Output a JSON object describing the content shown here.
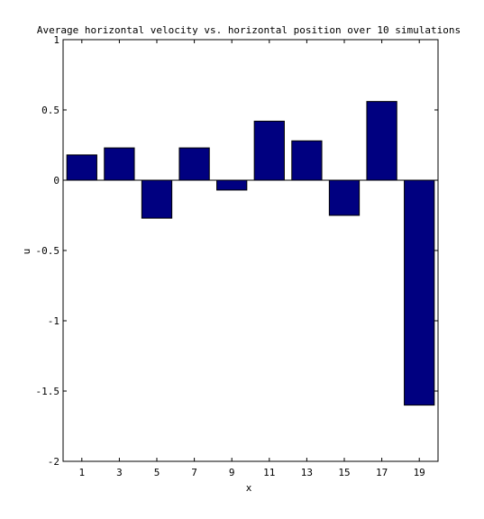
{
  "chart_data": {
    "type": "bar",
    "title": "Average horizontal velocity vs. horizontal position over 10 simulations",
    "xlabel": "x",
    "ylabel": "u",
    "categories": [
      1,
      3,
      5,
      7,
      9,
      11,
      13,
      15,
      17,
      19
    ],
    "values": [
      0.18,
      0.23,
      -0.27,
      0.23,
      -0.07,
      0.42,
      0.28,
      -0.25,
      0.56,
      -1.6
    ],
    "ylim": [
      -2,
      1
    ],
    "xlim": [
      0,
      20
    ],
    "yticks": [
      1,
      0.5,
      0,
      -0.5,
      -1,
      -1.5,
      -2
    ],
    "ytick_labels": [
      "1",
      "0.5",
      "0",
      "-0.5",
      "-1",
      "-1.5",
      "-2"
    ],
    "xtick_labels": [
      "1",
      "3",
      "5",
      "7",
      "9",
      "11",
      "13",
      "15",
      "17",
      "19"
    ],
    "bar_color": "#000080",
    "grid": false,
    "legend": "none"
  }
}
